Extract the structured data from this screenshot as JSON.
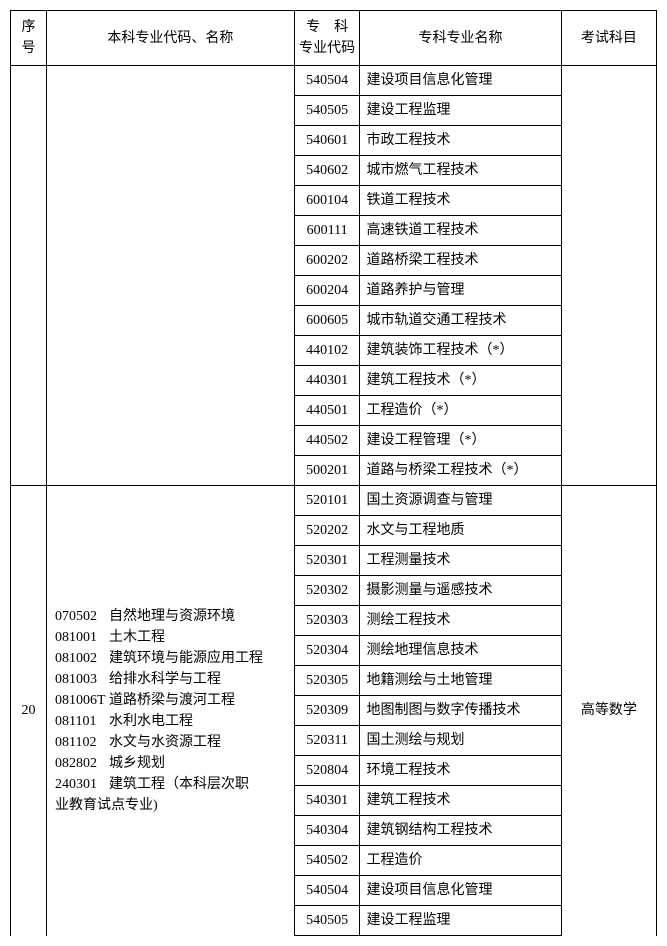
{
  "headers": {
    "seq": "序号",
    "major": "本科专业代码、名称",
    "code_line1": "专　科",
    "code_line2": "专业代码",
    "name": "专科专业名称",
    "exam": "考试科目"
  },
  "block1": {
    "rows": [
      {
        "code": "540504",
        "name": "建设项目信息化管理"
      },
      {
        "code": "540505",
        "name": "建设工程监理"
      },
      {
        "code": "540601",
        "name": "市政工程技术"
      },
      {
        "code": "540602",
        "name": "城市燃气工程技术"
      },
      {
        "code": "600104",
        "name": "铁道工程技术"
      },
      {
        "code": "600111",
        "name": "高速铁道工程技术"
      },
      {
        "code": "600202",
        "name": "道路桥梁工程技术"
      },
      {
        "code": "600204",
        "name": "道路养护与管理"
      },
      {
        "code": "600605",
        "name": "城市轨道交通工程技术"
      },
      {
        "code": "440102",
        "name": "建筑装饰工程技术（*）"
      },
      {
        "code": "440301",
        "name": "建筑工程技术（*）"
      },
      {
        "code": "440501",
        "name": "工程造价（*）"
      },
      {
        "code": "440502",
        "name": "建设工程管理（*）"
      },
      {
        "code": "500201",
        "name": "道路与桥梁工程技术（*）"
      }
    ]
  },
  "block2": {
    "seq": "20",
    "exam": "高等数学",
    "majors": [
      {
        "code": "070502",
        "name": "自然地理与资源环境"
      },
      {
        "code": "081001",
        "name": "土木工程"
      },
      {
        "code": "081002",
        "name": "建筑环境与能源应用工程"
      },
      {
        "code": "081003",
        "name": "给排水科学与工程"
      },
      {
        "code": "081006T",
        "name": "道路桥梁与渡河工程"
      },
      {
        "code": "081101",
        "name": "水利水电工程"
      },
      {
        "code": "081102",
        "name": "水文与水资源工程"
      },
      {
        "code": "082802",
        "name": "城乡规划"
      },
      {
        "code": "240301",
        "name": "建筑工程（本科层次职"
      }
    ],
    "majors_tail": "业教育试点专业)",
    "rows": [
      {
        "code": "520101",
        "name": "国土资源调查与管理"
      },
      {
        "code": "520202",
        "name": "水文与工程地质"
      },
      {
        "code": "520301",
        "name": "工程测量技术"
      },
      {
        "code": "520302",
        "name": "摄影测量与遥感技术"
      },
      {
        "code": "520303",
        "name": "测绘工程技术"
      },
      {
        "code": "520304",
        "name": "测绘地理信息技术"
      },
      {
        "code": "520305",
        "name": "地籍测绘与土地管理"
      },
      {
        "code": "520309",
        "name": "地图制图与数字传播技术"
      },
      {
        "code": "520311",
        "name": "国土测绘与规划"
      },
      {
        "code": "520804",
        "name": "环境工程技术"
      },
      {
        "code": "540301",
        "name": "建筑工程技术"
      },
      {
        "code": "540304",
        "name": "建筑钢结构工程技术"
      },
      {
        "code": "540502",
        "name": "工程造价"
      },
      {
        "code": "540504",
        "name": "建设项目信息化管理"
      },
      {
        "code": "540505",
        "name": "建设工程监理"
      }
    ]
  }
}
